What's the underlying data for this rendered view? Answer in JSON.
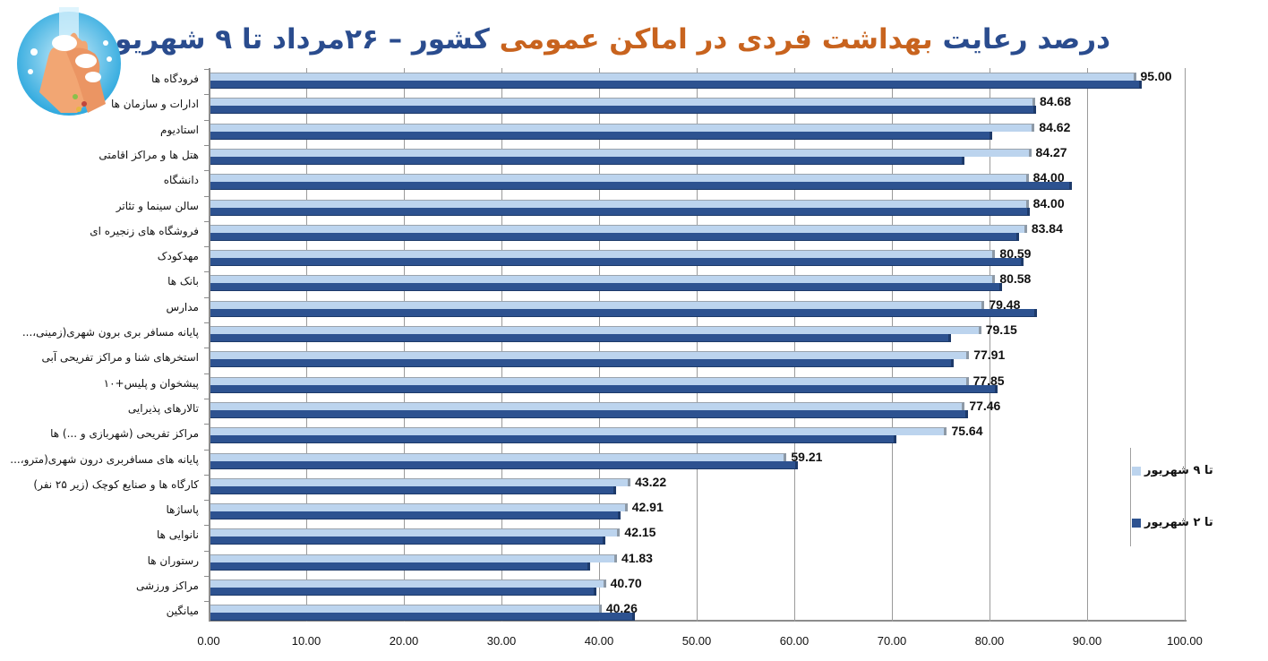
{
  "title": {
    "part1": "درصد رعایت",
    "part2": "بهداشت فردی در اماکن عمومی",
    "part3": "کشور – ۲۶مرداد تا ۹ شهریور",
    "colors": {
      "blue": "#2a4c8e",
      "orange": "#c8631e"
    }
  },
  "logo": {
    "icon": "hand-washing-icon"
  },
  "legend": [
    {
      "label": "تا ۹ شهریور",
      "color": "#bcd4ee"
    },
    {
      "label": "تا ۲ شهریور",
      "color": "#2d5290"
    }
  ],
  "x_ticks": [
    "0.00",
    "10.00",
    "20.00",
    "30.00",
    "40.00",
    "50.00",
    "60.00",
    "70.00",
    "80.00",
    "90.00",
    "100.00"
  ],
  "chart_data": {
    "type": "bar",
    "orientation": "horizontal",
    "title": "درصد رعایت بهداشت فردی در اماکن عمومی کشور – ۲۶مرداد تا ۹ شهریور",
    "xlabel": "",
    "ylabel": "",
    "xlim": [
      0,
      100
    ],
    "grid": true,
    "legend_position": "right",
    "categories": [
      "فرودگاه ها",
      "ادارات و سازمان ها",
      "استادیوم",
      "هتل ها و مراکز اقامتی",
      "دانشگاه",
      "سالن سینما و تئاتر",
      "فروشگاه های زنجیره ای",
      "مهدکودک",
      "بانک ها",
      "مدارس",
      "پایانه مسافر بری برون شهری(زمینی،...",
      "استخرهای شنا و مراکز تفریحی آبی",
      "پیشخوان و پلیس+۱۰",
      "تالارهای پذیرایی",
      "مراکز تفریحی (شهربازی و ...) ها",
      "پایانه های مسافربری درون شهری(مترو،...",
      "کارگاه ها و صنایع کوچک (زیر ۲۵ نفر)",
      "پاساژها",
      "نانوایی ها",
      "رستوران ها",
      "مراکز ورزشی",
      "میانگین"
    ],
    "series": [
      {
        "name": "تا ۹ شهریور",
        "color": "#bcd4ee",
        "values": [
          95.0,
          84.68,
          84.62,
          84.27,
          84.0,
          84.0,
          83.84,
          80.59,
          80.58,
          79.48,
          79.15,
          77.91,
          77.85,
          77.46,
          75.64,
          59.21,
          43.22,
          42.91,
          42.15,
          41.83,
          40.7,
          40.26
        ],
        "labels": [
          "95.00",
          "84.68",
          "84.62",
          "84.27",
          "84.00",
          "84.00",
          "83.84",
          "80.59",
          "80.58",
          "79.48",
          "79.15",
          "77.91",
          "77.85",
          "77.46",
          "75.64",
          "59.21",
          "43.22",
          "42.91",
          "42.15",
          "41.83",
          "40.70",
          "40.26"
        ]
      },
      {
        "name": "تا ۲ شهریور",
        "color": "#2d5290",
        "values": [
          95.6,
          84.8,
          80.3,
          77.4,
          88.4,
          84.1,
          83.0,
          83.5,
          81.3,
          84.9,
          76.1,
          76.3,
          80.8,
          77.8,
          70.5,
          60.4,
          41.7,
          42.2,
          40.6,
          39.1,
          39.7,
          43.7
        ]
      }
    ]
  }
}
